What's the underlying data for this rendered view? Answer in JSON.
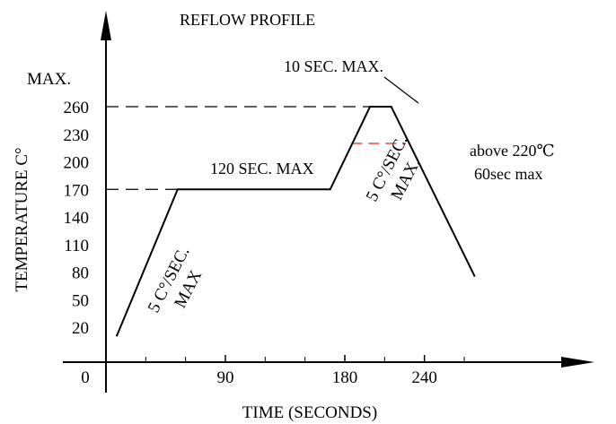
{
  "chart_data": {
    "type": "line",
    "title": "REFLOW PROFILE",
    "xlabel": "TIME (SECONDS)",
    "ylabel": "TEMPERATURE C°",
    "x_origin_label": "0",
    "x_ticks": [
      90,
      180,
      240
    ],
    "y_ticks": [
      20,
      50,
      80,
      110,
      140,
      170,
      200,
      230,
      260
    ],
    "y_max_label": "MAX.",
    "series": [
      {
        "x": [
          8,
          54,
          169,
          199,
          215,
          278
        ],
        "y": [
          10,
          170,
          170,
          260,
          260,
          75
        ]
      }
    ],
    "reference_lines": [
      {
        "y": 260,
        "x_from": 0,
        "x_to": 200,
        "color": "#000000"
      },
      {
        "y": 170,
        "x_from": 0,
        "x_to": 54,
        "color": "#000000"
      },
      {
        "y": 220,
        "x_from": 185,
        "x_to": 226,
        "color": "#e05050"
      }
    ],
    "annotations": {
      "peak": "10 SEC. MAX.",
      "soak": "120 SEC. MAX",
      "ramp1_line1": "5 C°/SEC.",
      "ramp1_line2": "MAX",
      "ramp2_line1": "5 C°/SEC.",
      "ramp2_line2": "MAX.",
      "above_line1": "above 220℃",
      "above_line2": "60sec max"
    }
  }
}
